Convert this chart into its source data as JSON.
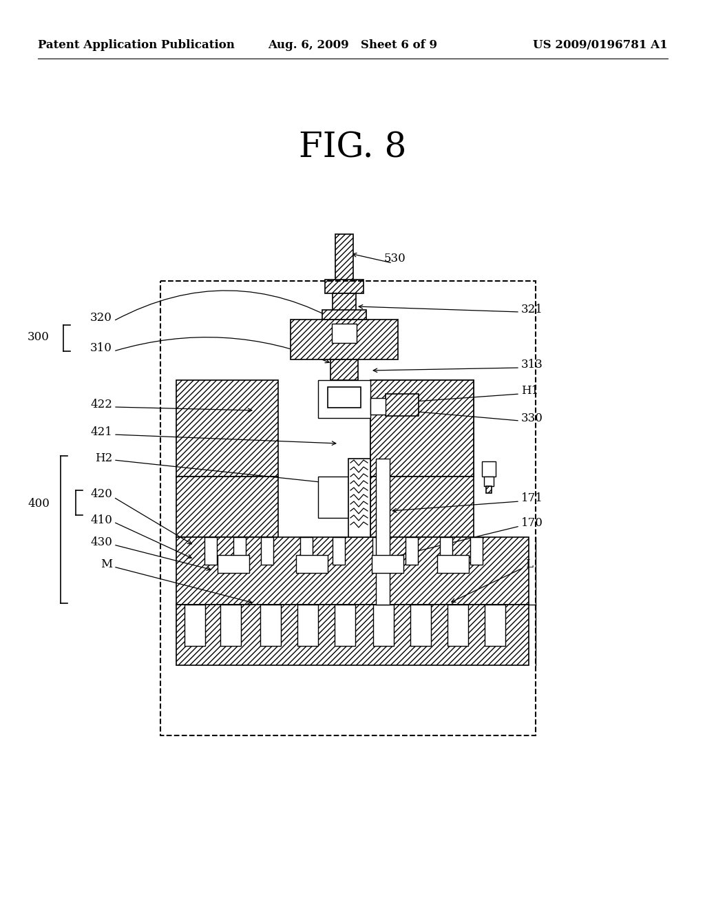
{
  "bg_color": "#ffffff",
  "header_left": "Patent Application Publication",
  "header_mid": "Aug. 6, 2009   Sheet 6 of 9",
  "header_right": "US 2009/0196781 A1",
  "fig_label": "FIG. 8",
  "line_color": "#000000",
  "hatch_pattern": "////",
  "lw_main": 1.5,
  "lw_thin": 0.8,
  "font_size_header": 12,
  "font_size_fig": 36,
  "font_size_label": 12
}
